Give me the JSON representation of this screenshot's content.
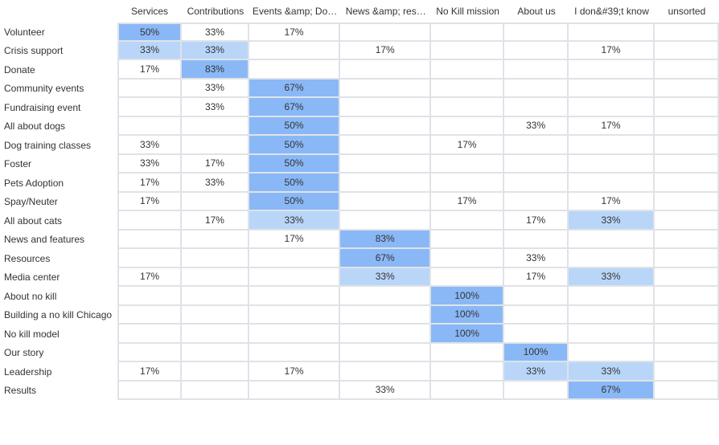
{
  "columns": [
    "Services",
    "Contributions",
    "Events &amp; Do…",
    "News &amp; res…",
    "No Kill mission",
    "About us",
    "I don&#39;t know",
    "unsorted"
  ],
  "rows": [
    {
      "label": "Volunteer",
      "cells": [
        "50%",
        "33%",
        "17%",
        "",
        "",
        "",
        "",
        ""
      ]
    },
    {
      "label": "Crisis support",
      "cells": [
        "33%",
        "33%",
        "",
        "17%",
        "",
        "",
        "17%",
        ""
      ]
    },
    {
      "label": "Donate",
      "cells": [
        "17%",
        "83%",
        "",
        "",
        "",
        "",
        "",
        ""
      ]
    },
    {
      "label": "Community events",
      "cells": [
        "",
        "33%",
        "67%",
        "",
        "",
        "",
        "",
        ""
      ]
    },
    {
      "label": "Fundraising event",
      "cells": [
        "",
        "33%",
        "67%",
        "",
        "",
        "",
        "",
        ""
      ]
    },
    {
      "label": "All about dogs",
      "cells": [
        "",
        "",
        "50%",
        "",
        "",
        "33%",
        "17%",
        ""
      ]
    },
    {
      "label": "Dog training classes",
      "cells": [
        "33%",
        "",
        "50%",
        "",
        "17%",
        "",
        "",
        ""
      ]
    },
    {
      "label": "Foster",
      "cells": [
        "33%",
        "17%",
        "50%",
        "",
        "",
        "",
        "",
        ""
      ]
    },
    {
      "label": "Pets Adoption",
      "cells": [
        "17%",
        "33%",
        "50%",
        "",
        "",
        "",
        "",
        ""
      ]
    },
    {
      "label": "Spay/Neuter",
      "cells": [
        "17%",
        "",
        "50%",
        "",
        "17%",
        "",
        "17%",
        ""
      ]
    },
    {
      "label": "All about cats",
      "cells": [
        "",
        "17%",
        "33%",
        "",
        "",
        "17%",
        "33%",
        ""
      ]
    },
    {
      "label": "News and features",
      "cells": [
        "",
        "",
        "17%",
        "83%",
        "",
        "",
        "",
        ""
      ]
    },
    {
      "label": "Resources",
      "cells": [
        "",
        "",
        "",
        "67%",
        "",
        "33%",
        "",
        ""
      ]
    },
    {
      "label": "Media center",
      "cells": [
        "17%",
        "",
        "",
        "33%",
        "",
        "17%",
        "33%",
        ""
      ]
    },
    {
      "label": "About no kill",
      "cells": [
        "",
        "",
        "",
        "",
        "100%",
        "",
        "",
        ""
      ]
    },
    {
      "label": "Building a no kill Chicago",
      "cells": [
        "",
        "",
        "",
        "",
        "100%",
        "",
        "",
        ""
      ]
    },
    {
      "label": "No kill model",
      "cells": [
        "",
        "",
        "",
        "",
        "100%",
        "",
        "",
        ""
      ]
    },
    {
      "label": "Our story",
      "cells": [
        "",
        "",
        "",
        "",
        "",
        "100%",
        "",
        ""
      ]
    },
    {
      "label": "Leadership",
      "cells": [
        "17%",
        "",
        "17%",
        "",
        "",
        "33%",
        "33%",
        ""
      ]
    },
    {
      "label": "Results",
      "cells": [
        "",
        "",
        "",
        "33%",
        "",
        "",
        "67%",
        ""
      ]
    }
  ],
  "colors": {
    "strong_fill": "#8ab8f7",
    "light_fill": "#b9d6f9",
    "grid_border": "#dfe3e8",
    "text": "#333333"
  }
}
